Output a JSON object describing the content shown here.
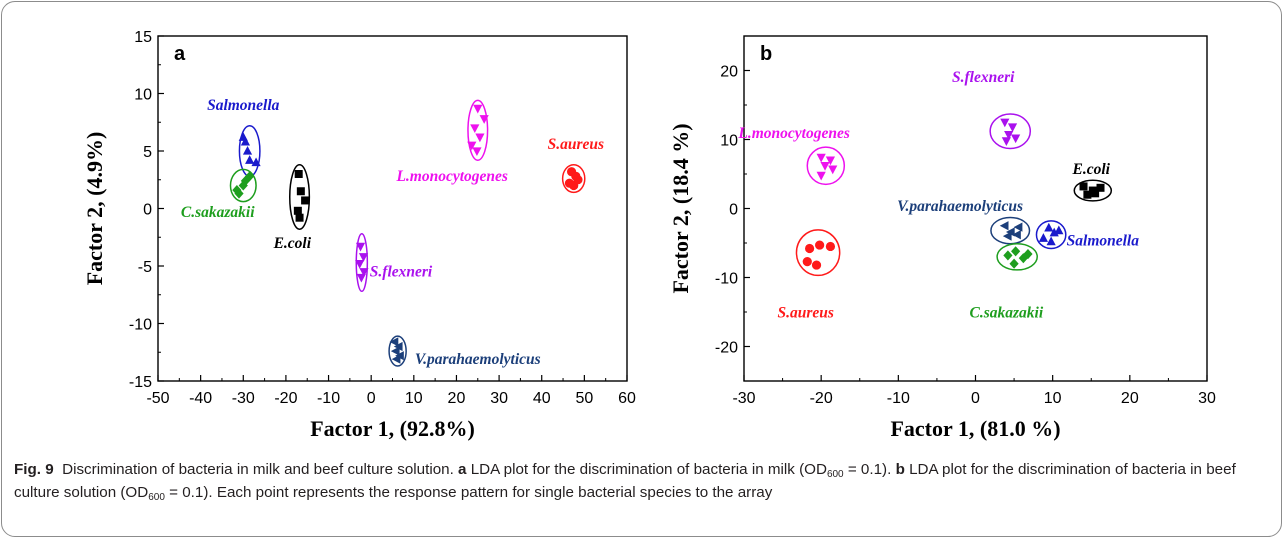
{
  "chart_data": [
    {
      "type": "scatter",
      "panel_label": "a",
      "xlabel": "Factor 1, (92.8%)",
      "ylabel": "Factor 2, (4.9%)",
      "xlim": [
        -50,
        60
      ],
      "ylim": [
        -15,
        15
      ],
      "xticks": [
        -50,
        -40,
        -30,
        -20,
        -10,
        0,
        10,
        20,
        30,
        40,
        50,
        60
      ],
      "yticks": [
        -15,
        -10,
        -5,
        0,
        5,
        10,
        15
      ],
      "grid": false,
      "series": [
        {
          "name": "S.aureus",
          "color": "#ff1a1a",
          "marker": "circle",
          "points": [
            [
              47,
              3.2
            ],
            [
              48,
              2.8
            ],
            [
              46.5,
              2.2
            ],
            [
              48.5,
              2.5
            ],
            [
              47.5,
              2.0
            ]
          ],
          "ellipse": {
            "cx": 47.5,
            "cy": 2.6,
            "rx": 2.6,
            "ry": 1.2
          },
          "label_pos": [
            48,
            5.7
          ]
        },
        {
          "name": "L.monocytogenes",
          "color": "#ee11ee",
          "marker": "triangle-down",
          "points": [
            [
              25,
              8.7
            ],
            [
              26.5,
              7.8
            ],
            [
              24.3,
              7.0
            ],
            [
              25.5,
              6.2
            ],
            [
              23.6,
              5.5
            ],
            [
              24.8,
              5.0
            ]
          ],
          "ellipse": {
            "cx": 25,
            "cy": 6.8,
            "rx": 2.3,
            "ry": 2.6
          },
          "label_pos": [
            19,
            2.9
          ]
        },
        {
          "name": "Salmonella",
          "color": "#1a1acc",
          "marker": "triangle-up",
          "points": [
            [
              -30,
              6.2
            ],
            [
              -29,
              5.0
            ],
            [
              -28.5,
              4.2
            ],
            [
              -27,
              4.0
            ],
            [
              -29.5,
              5.8
            ]
          ],
          "ellipse": {
            "cx": -28.5,
            "cy": 5.0,
            "rx": 2.4,
            "ry": 2.2
          },
          "label_pos": [
            -30,
            9.1
          ]
        },
        {
          "name": "C.sakazakii",
          "color": "#1e9e1e",
          "marker": "diamond",
          "points": [
            [
              -31,
              1.3
            ],
            [
              -30,
              2.0
            ],
            [
              -29.5,
              2.4
            ],
            [
              -28.5,
              2.8
            ],
            [
              -31.5,
              1.6
            ]
          ],
          "ellipse": {
            "cx": -30,
            "cy": 2.0,
            "rx": 3.0,
            "ry": 1.4
          },
          "label_pos": [
            -36,
            -0.2
          ]
        },
        {
          "name": "E.coli",
          "color": "#000000",
          "marker": "square",
          "points": [
            [
              -17,
              3.0
            ],
            [
              -16.5,
              1.5
            ],
            [
              -15.5,
              0.7
            ],
            [
              -17.2,
              -0.2
            ],
            [
              -16.8,
              -0.8
            ]
          ],
          "ellipse": {
            "cx": -16.8,
            "cy": 1.0,
            "rx": 2.3,
            "ry": 2.8
          },
          "label_pos": [
            -18.5,
            -2.9
          ]
        },
        {
          "name": "S.flexneri",
          "color": "#aa11ee",
          "marker": "triangle-down",
          "points": [
            [
              -2.5,
              -3.3
            ],
            [
              -1.8,
              -4.2
            ],
            [
              -2.7,
              -4.8
            ],
            [
              -1.7,
              -5.5
            ],
            [
              -2.3,
              -6.0
            ]
          ],
          "ellipse": {
            "cx": -2.2,
            "cy": -4.7,
            "rx": 1.3,
            "ry": 2.5
          },
          "label_pos": [
            7,
            -5.4
          ]
        },
        {
          "name": "V.parahaemolyticus",
          "color": "#1c3f7a",
          "marker": "triangle-left",
          "points": [
            [
              5.5,
              -11.6
            ],
            [
              6.5,
              -12.0
            ],
            [
              5.8,
              -12.4
            ],
            [
              6.8,
              -12.8
            ],
            [
              6,
              -13.1
            ]
          ],
          "ellipse": {
            "cx": 6.2,
            "cy": -12.4,
            "rx": 2.0,
            "ry": 1.3
          },
          "label_pos": [
            25,
            -13.0
          ]
        }
      ]
    },
    {
      "type": "scatter",
      "panel_label": "b",
      "xlabel": "Factor 1, (81.0 %)",
      "ylabel": "Factor 2, (18.4 %)",
      "xlim": [
        -30,
        30
      ],
      "ylim": [
        -25,
        25
      ],
      "xticks": [
        -30,
        -20,
        -10,
        0,
        10,
        20,
        30
      ],
      "yticks": [
        -20,
        -10,
        0,
        10,
        20
      ],
      "grid": false,
      "series": [
        {
          "name": "S.flexneri",
          "color": "#aa11ee",
          "marker": "triangle-down",
          "points": [
            [
              3.8,
              12.5
            ],
            [
              4.8,
              11.8
            ],
            [
              4.3,
              10.7
            ],
            [
              5.2,
              10.2
            ],
            [
              4.0,
              9.8
            ]
          ],
          "ellipse": {
            "cx": 4.5,
            "cy": 11.2,
            "rx": 2.6,
            "ry": 2.5
          },
          "label_pos": [
            1,
            19.2
          ]
        },
        {
          "name": "L.monocytogenes",
          "color": "#ee11ee",
          "marker": "triangle-down",
          "points": [
            [
              -20,
              7.4
            ],
            [
              -18.8,
              7.0
            ],
            [
              -19.5,
              6.2
            ],
            [
              -18.5,
              5.7
            ],
            [
              -20,
              4.8
            ]
          ],
          "ellipse": {
            "cx": -19.4,
            "cy": 6.2,
            "rx": 2.4,
            "ry": 2.7
          },
          "label_pos": [
            -23.5,
            11.1
          ]
        },
        {
          "name": "E.coli",
          "color": "#000000",
          "marker": "square",
          "points": [
            [
              14,
              3.2
            ],
            [
              15.2,
              2.6
            ],
            [
              16.2,
              3.0
            ],
            [
              14.5,
              2.0
            ],
            [
              15.5,
              2.2
            ]
          ],
          "ellipse": {
            "cx": 15.2,
            "cy": 2.6,
            "rx": 2.4,
            "ry": 1.5
          },
          "label_pos": [
            15,
            5.9
          ]
        },
        {
          "name": "V.parahaemolyticus",
          "color": "#1c3f7a",
          "marker": "triangle-left",
          "points": [
            [
              3.8,
              -2.5
            ],
            [
              4.6,
              -3.4
            ],
            [
              5.6,
              -2.7
            ],
            [
              4.2,
              -4.0
            ],
            [
              5.4,
              -3.8
            ]
          ],
          "ellipse": {
            "cx": 4.5,
            "cy": -3.2,
            "rx": 2.5,
            "ry": 1.9
          },
          "label_pos": [
            -2,
            0.5
          ]
        },
        {
          "name": "Salmonella",
          "color": "#1a1acc",
          "marker": "triangle-up",
          "points": [
            [
              9.5,
              -2.8
            ],
            [
              10.2,
              -3.5
            ],
            [
              8.8,
              -4.3
            ],
            [
              9.8,
              -4.8
            ],
            [
              10.8,
              -3.2
            ]
          ],
          "ellipse": {
            "cx": 9.8,
            "cy": -3.8,
            "rx": 1.9,
            "ry": 2.0
          },
          "label_pos": [
            16.5,
            -4.5
          ]
        },
        {
          "name": "C.sakazakii",
          "color": "#1e9e1e",
          "marker": "diamond",
          "points": [
            [
              4.2,
              -6.8
            ],
            [
              5.2,
              -6.2
            ],
            [
              6.2,
              -7.2
            ],
            [
              5.0,
              -8.0
            ],
            [
              6.8,
              -6.6
            ]
          ],
          "ellipse": {
            "cx": 5.4,
            "cy": -7.0,
            "rx": 2.6,
            "ry": 1.9
          },
          "label_pos": [
            4,
            -14.9
          ]
        },
        {
          "name": "S.aureus",
          "color": "#ff1a1a",
          "marker": "circle",
          "points": [
            [
              -21.5,
              -5.8
            ],
            [
              -20.2,
              -5.3
            ],
            [
              -18.8,
              -5.5
            ],
            [
              -21.8,
              -7.7
            ],
            [
              -20.6,
              -8.2
            ]
          ],
          "ellipse": {
            "cx": -20.4,
            "cy": -6.4,
            "rx": 2.8,
            "ry": 3.3
          },
          "label_pos": [
            -22,
            -14.9
          ]
        }
      ]
    }
  ],
  "caption": {
    "fig": "Fig. 9",
    "text1": "Discrimination of bacteria in milk and beef culture solution.",
    "a_label": "a",
    "text2": "LDA plot for the discrimination of bacteria in milk (OD",
    "sub1": "600",
    "text3": " = 0.1).",
    "b_label": "b",
    "text4": "LDA plot for the discrimination of bacteria in beef culture solution (OD",
    "sub2": "600",
    "text5": " = 0.1). Each point represents the response pattern for single bacterial species to the array"
  }
}
